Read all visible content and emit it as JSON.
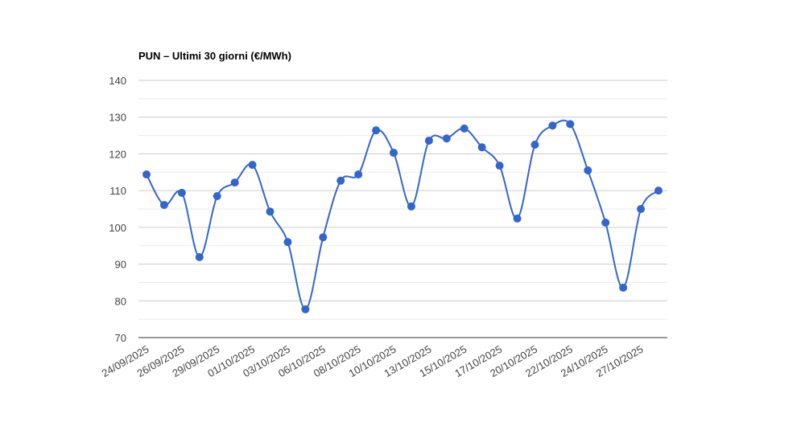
{
  "chart_data": {
    "type": "line",
    "title": "PUN – Ultimi 30 giorni (€/MWh)",
    "categories": [
      "24/09/2025",
      null,
      "26/09/2025",
      null,
      "29/09/2025",
      null,
      "01/10/2025",
      null,
      "03/10/2025",
      null,
      "06/10/2025",
      null,
      "08/10/2025",
      null,
      "10/10/2025",
      null,
      "13/10/2025",
      null,
      "15/10/2025",
      null,
      "17/10/2025",
      null,
      "20/10/2025",
      null,
      "22/10/2025",
      null,
      "24/10/2025",
      null,
      "27/10/2025",
      null
    ],
    "values": [
      114.4,
      106.1,
      109.4,
      91.9,
      108.5,
      112.2,
      117.0,
      104.3,
      96.0,
      77.7,
      97.3,
      112.7,
      114.4,
      126.4,
      120.3,
      105.7,
      123.6,
      124.2,
      126.9,
      121.8,
      116.8,
      102.4,
      122.5,
      127.7,
      128.1,
      115.5,
      101.3,
      83.6,
      105.0,
      110.0
    ],
    "color": "#3366cc",
    "ylim": [
      70,
      140
    ],
    "yticks": [
      70,
      80,
      90,
      100,
      110,
      120,
      130,
      140
    ],
    "grid": true,
    "smooth": true
  }
}
